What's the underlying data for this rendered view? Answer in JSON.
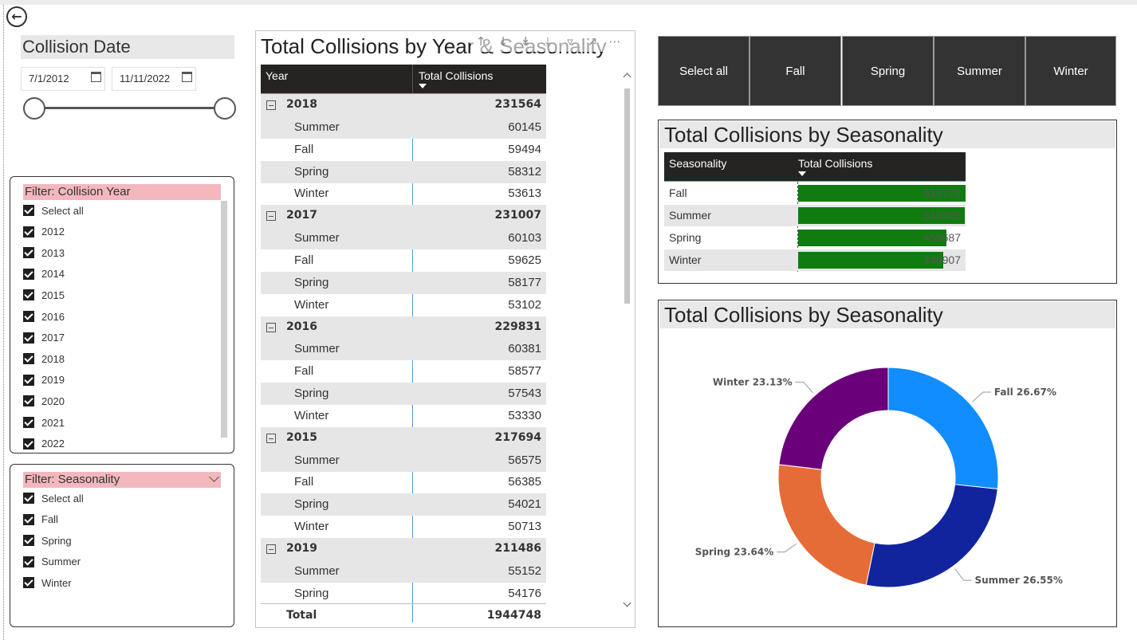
{
  "date_slicer": {
    "title": "Collision Date",
    "start": "7/1/2012",
    "end": "11/11/2022"
  },
  "filter_year": {
    "title": "Filter: Collision Year",
    "items": [
      "Select all",
      "2012",
      "2013",
      "2014",
      "2015",
      "2016",
      "2017",
      "2018",
      "2019",
      "2020",
      "2021",
      "2022"
    ]
  },
  "filter_season": {
    "title": "Filter: Seasonality",
    "items": [
      "Select all",
      "Fall",
      "Spring",
      "Summer",
      "Winter"
    ]
  },
  "matrix": {
    "title": "Total Collisions by Year & Seasonality",
    "col_year": "Year",
    "col_total": "Total Collisions",
    "rows": [
      {
        "type": "year",
        "label": "2018",
        "value": "231564"
      },
      {
        "type": "season",
        "label": "Summer",
        "value": "60145"
      },
      {
        "type": "season",
        "label": "Fall",
        "value": "59494"
      },
      {
        "type": "season",
        "label": "Spring",
        "value": "58312"
      },
      {
        "type": "season",
        "label": "Winter",
        "value": "53613"
      },
      {
        "type": "year",
        "label": "2017",
        "value": "231007"
      },
      {
        "type": "season",
        "label": "Summer",
        "value": "60103"
      },
      {
        "type": "season",
        "label": "Fall",
        "value": "59625"
      },
      {
        "type": "season",
        "label": "Spring",
        "value": "58177"
      },
      {
        "type": "season",
        "label": "Winter",
        "value": "53102"
      },
      {
        "type": "year",
        "label": "2016",
        "value": "229831"
      },
      {
        "type": "season",
        "label": "Summer",
        "value": "60381"
      },
      {
        "type": "season",
        "label": "Fall",
        "value": "58577"
      },
      {
        "type": "season",
        "label": "Spring",
        "value": "57543"
      },
      {
        "type": "season",
        "label": "Winter",
        "value": "53330"
      },
      {
        "type": "year",
        "label": "2015",
        "value": "217694"
      },
      {
        "type": "season",
        "label": "Summer",
        "value": "56575"
      },
      {
        "type": "season",
        "label": "Fall",
        "value": "56385"
      },
      {
        "type": "season",
        "label": "Spring",
        "value": "54021"
      },
      {
        "type": "season",
        "label": "Winter",
        "value": "50713"
      },
      {
        "type": "year",
        "label": "2019",
        "value": "211486"
      },
      {
        "type": "season",
        "label": "Summer",
        "value": "55152"
      },
      {
        "type": "season",
        "label": "Spring",
        "value": "54176"
      }
    ],
    "total_label": "Total",
    "total_value": "1944748"
  },
  "season_buttons": [
    "Select all",
    "Fall",
    "Spring",
    "Summer",
    "Winter"
  ],
  "bar_table": {
    "title": "Total Collisions by Seasonality",
    "col_season": "Seasonality",
    "col_total": "Total Collisions",
    "max": 518729,
    "bar_color": "#107c10",
    "rows": [
      {
        "label": "Fall",
        "value": 518729,
        "display": "518729"
      },
      {
        "label": "Summer",
        "value": 516425,
        "display": "516425"
      },
      {
        "label": "Spring",
        "value": 459687,
        "display": "459687"
      },
      {
        "label": "Winter",
        "value": 449907,
        "display": "449907"
      }
    ]
  },
  "donut": {
    "title": "Total Collisions by Seasonality",
    "slices": [
      {
        "label": "Fall 26.67%",
        "pct": 26.67,
        "color": "#118dff"
      },
      {
        "label": "Summer 26.55%",
        "pct": 26.55,
        "color": "#12239e"
      },
      {
        "label": "Spring 23.64%",
        "pct": 23.64,
        "color": "#e66c37"
      },
      {
        "label": "Winter 23.13%",
        "pct": 23.13,
        "color": "#6b007b"
      }
    ]
  }
}
